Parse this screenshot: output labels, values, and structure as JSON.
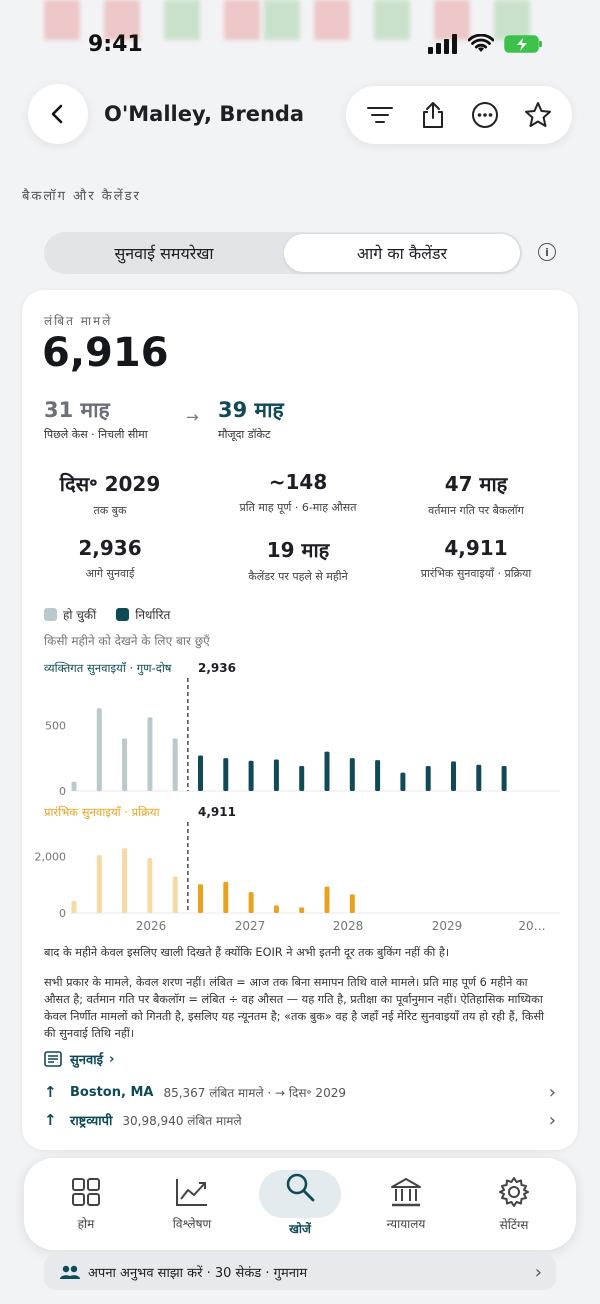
{
  "status": {
    "time": "9:41"
  },
  "header": {
    "title": "O'Malley, Brenda"
  },
  "section_label": "बैकलॉग और कैलेंडर",
  "segments": {
    "left": "सुनवाई समयरेखा",
    "right": "आगे का कैलेंडर"
  },
  "pending": {
    "label": "लंबित मामले",
    "value": "6,916"
  },
  "compare": {
    "old_value": "31 माह",
    "old_label": "पिछले केस · निचली सीमा",
    "new_value": "39 माह",
    "new_label": "मौजूदा डॉकेट"
  },
  "stats": [
    {
      "value": "दिस॰ 2029",
      "label": "तक बुक"
    },
    {
      "value": "~148",
      "label": "प्रति माह पूर्ण · 6-माह औसत"
    },
    {
      "value": "47 माह",
      "label": "वर्तमान गति पर बैकलॉग"
    },
    {
      "value": "2,936",
      "label": "आगे सुनवाई"
    },
    {
      "value": "19 माह",
      "label": "कैलेंडर पर पहले से महीने"
    },
    {
      "value": "4,911",
      "label": "प्रारंभिक सुनवाइयाँ · प्रक्रिया"
    }
  ],
  "legend": {
    "done": "हो चुकीं",
    "scheduled": "निर्धारित"
  },
  "hint": "किसी महीने को देखने के लिए बार छुएँ",
  "colors": {
    "done_merits": "#b9c9cc",
    "scheduled_merits": "#0f4a56",
    "done_prelim": "#f6d9a4",
    "scheduled_prelim": "#e8a21e"
  },
  "chart_data": [
    {
      "type": "bar",
      "title": "व्यक्तिगत सुनवाइयाँ · गुण-दोष",
      "total": "2,936",
      "y_ticks": [
        "0",
        "500"
      ],
      "ylim": [
        0,
        700
      ],
      "series": [
        {
          "name": "हो चुकीं",
          "values": [
            70,
            630,
            400,
            560,
            400
          ]
        },
        {
          "name": "निर्धारित",
          "values": [
            270,
            250,
            230,
            240,
            190,
            300,
            250,
            235,
            140,
            190,
            225,
            200,
            190
          ]
        }
      ]
    },
    {
      "type": "bar",
      "title": "प्रारंभिक सुनवाइयाँ · प्रक्रिया",
      "total": "4,911",
      "y_ticks": [
        "0",
        "2,000"
      ],
      "ylim": [
        0,
        2700
      ],
      "x_ticks": [
        "2026",
        "2027",
        "2028",
        "2029",
        "20…"
      ],
      "series": [
        {
          "name": "हो चुकीं",
          "values": [
            430,
            2050,
            2300,
            1950,
            1300
          ]
        },
        {
          "name": "निर्धारित",
          "values": [
            1020,
            1110,
            740,
            270,
            200,
            940,
            660
          ]
        }
      ]
    }
  ],
  "footnote1": "बाद के महीने केवल इसलिए खाली दिखते हैं क्योंकि EOIR ने अभी इतनी दूर तक बुकिंग नहीं की है।",
  "footnote2": "सभी प्रकार के मामले, केवल शरण नहीं। लंबित = आज तक बिना समापन तिथि वाले मामले। प्रति माह पूर्ण 6 महीने का औसत है; वर्तमान गति पर बैकलॉग = लंबित ÷ वह औसत — यह गति है, प्रतीक्षा का पूर्वानुमान नहीं। ऐतिहासिक माध्यिका केवल निर्णीत मामलों को गिनती है, इसलिए यह न्यूनतम है; «तक बुक» वह है जहाँ नई मेरिट सुनवाइयाँ तय हो रही हैं, किसी की सुनवाई तिथि नहीं।",
  "links": {
    "hearings": "सुनवाई",
    "boston_name": "Boston, MA",
    "boston_info": "85,367 लंबित मामले · → दिस॰ 2029",
    "national_name": "राष्ट्रव्यापी",
    "national_info": "30,98,940 लंबित मामले"
  },
  "tabs": [
    {
      "label": "होम",
      "icon": "grid-icon"
    },
    {
      "label": "विश्लेषण",
      "icon": "chart-icon"
    },
    {
      "label": "खोजें",
      "icon": "search-icon"
    },
    {
      "label": "न्यायालय",
      "icon": "court-icon"
    },
    {
      "label": "सेटिंग्स",
      "icon": "gear-icon"
    }
  ],
  "feedback": "अपना अनुभव साझा करें · 30 सेकंड · गुमनाम"
}
